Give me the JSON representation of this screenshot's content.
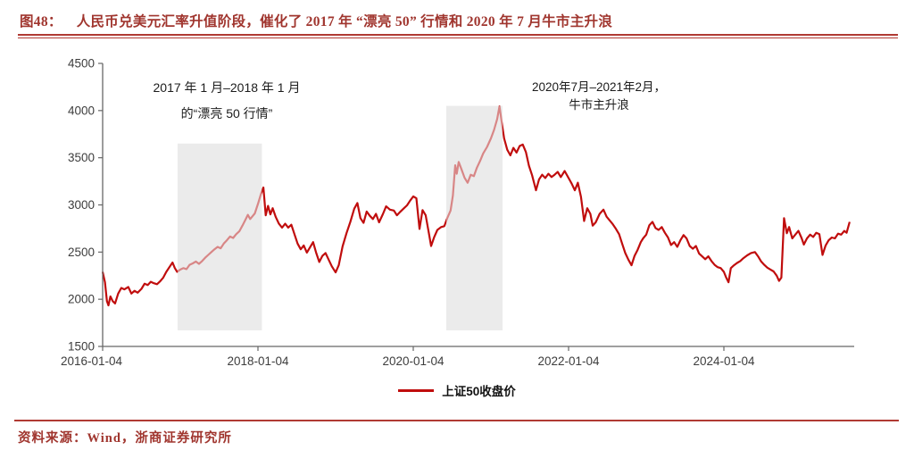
{
  "figure": {
    "label": "图48：",
    "title": "人民币兑美元汇率升值阶段，催化了 2017 年 “漂亮 50” 行情和 2020 年 7 月牛市主升浪",
    "source": "资料来源：Wind，浙商证券研究所"
  },
  "colors": {
    "title_red": "#a0352e",
    "rule_red": "#b03a33",
    "line_red": "#c00d0d",
    "axis_gray": "#666666",
    "tick_label": "#3d3d3d",
    "region_gray": "#ebebeb"
  },
  "annotations": [
    {
      "line1": "2017 年 1 月–2018 年 1 月",
      "line2": "的“漂亮 50 行情”"
    },
    {
      "line1": "2020年7月–2021年2月，",
      "line2": "牛市主升浪"
    }
  ],
  "legend": {
    "label": "上证50收盘价"
  },
  "chart_data": {
    "type": "line",
    "series_name": "上证50收盘价",
    "x_axis_start_date": "2016-01-04",
    "ylim": [
      1500,
      4500
    ],
    "grid": false,
    "legend_position": "bottom-center",
    "y_ticks": [
      4500,
      4000,
      3500,
      3000,
      2500,
      2000,
      1500
    ],
    "x_ticks": [
      {
        "label": "2016-01-04",
        "t": 0
      },
      {
        "label": "2018-01-04",
        "t": 2
      },
      {
        "label": "2020-01-04",
        "t": 4
      },
      {
        "label": "2022-01-04",
        "t": 6
      },
      {
        "label": "2024-01-04",
        "t": 8
      }
    ],
    "regions": [
      {
        "t0": 0.965,
        "t1": 2.05,
        "v_top": 3650,
        "v_bottom": 1670
      },
      {
        "t0": 4.425,
        "t1": 5.15,
        "v_top": 4050,
        "v_bottom": 1670
      }
    ],
    "noise_amplitude": 55,
    "points": [
      [
        0.0,
        2290
      ],
      [
        0.03,
        2180
      ],
      [
        0.055,
        1980
      ],
      [
        0.075,
        1935
      ],
      [
        0.1,
        2030
      ],
      [
        0.13,
        1980
      ],
      [
        0.16,
        1955
      ],
      [
        0.2,
        2060
      ],
      [
        0.24,
        2120
      ],
      [
        0.28,
        2105
      ],
      [
        0.33,
        2130
      ],
      [
        0.37,
        2060
      ],
      [
        0.41,
        2090
      ],
      [
        0.45,
        2070
      ],
      [
        0.5,
        2110
      ],
      [
        0.54,
        2165
      ],
      [
        0.58,
        2150
      ],
      [
        0.62,
        2185
      ],
      [
        0.66,
        2170
      ],
      [
        0.7,
        2160
      ],
      [
        0.74,
        2190
      ],
      [
        0.78,
        2230
      ],
      [
        0.82,
        2290
      ],
      [
        0.86,
        2340
      ],
      [
        0.9,
        2390
      ],
      [
        0.93,
        2330
      ],
      [
        0.96,
        2290
      ],
      [
        1.0,
        2315
      ],
      [
        1.04,
        2330
      ],
      [
        1.08,
        2320
      ],
      [
        1.12,
        2365
      ],
      [
        1.16,
        2380
      ],
      [
        1.2,
        2400
      ],
      [
        1.24,
        2375
      ],
      [
        1.28,
        2405
      ],
      [
        1.32,
        2440
      ],
      [
        1.36,
        2470
      ],
      [
        1.4,
        2500
      ],
      [
        1.44,
        2530
      ],
      [
        1.48,
        2555
      ],
      [
        1.52,
        2540
      ],
      [
        1.56,
        2590
      ],
      [
        1.6,
        2625
      ],
      [
        1.64,
        2665
      ],
      [
        1.68,
        2650
      ],
      [
        1.72,
        2690
      ],
      [
        1.76,
        2720
      ],
      [
        1.8,
        2780
      ],
      [
        1.84,
        2845
      ],
      [
        1.87,
        2895
      ],
      [
        1.9,
        2850
      ],
      [
        1.93,
        2880
      ],
      [
        1.96,
        2910
      ],
      [
        2.0,
        3010
      ],
      [
        2.04,
        3120
      ],
      [
        2.07,
        3185
      ],
      [
        2.1,
        2890
      ],
      [
        2.13,
        2990
      ],
      [
        2.16,
        2900
      ],
      [
        2.19,
        2965
      ],
      [
        2.23,
        2870
      ],
      [
        2.27,
        2800
      ],
      [
        2.31,
        2760
      ],
      [
        2.35,
        2800
      ],
      [
        2.39,
        2760
      ],
      [
        2.43,
        2790
      ],
      [
        2.47,
        2690
      ],
      [
        2.51,
        2590
      ],
      [
        2.55,
        2530
      ],
      [
        2.59,
        2570
      ],
      [
        2.63,
        2495
      ],
      [
        2.67,
        2550
      ],
      [
        2.71,
        2605
      ],
      [
        2.75,
        2490
      ],
      [
        2.79,
        2395
      ],
      [
        2.83,
        2460
      ],
      [
        2.87,
        2490
      ],
      [
        2.91,
        2420
      ],
      [
        2.95,
        2350
      ],
      [
        3.0,
        2285
      ],
      [
        3.04,
        2360
      ],
      [
        3.09,
        2560
      ],
      [
        3.14,
        2700
      ],
      [
        3.19,
        2820
      ],
      [
        3.24,
        2960
      ],
      [
        3.28,
        3020
      ],
      [
        3.32,
        2860
      ],
      [
        3.36,
        2810
      ],
      [
        3.4,
        2930
      ],
      [
        3.44,
        2885
      ],
      [
        3.48,
        2850
      ],
      [
        3.52,
        2905
      ],
      [
        3.56,
        2815
      ],
      [
        3.61,
        2905
      ],
      [
        3.65,
        2985
      ],
      [
        3.7,
        2950
      ],
      [
        3.75,
        2940
      ],
      [
        3.79,
        2890
      ],
      [
        3.83,
        2925
      ],
      [
        3.88,
        2965
      ],
      [
        3.92,
        2995
      ],
      [
        3.96,
        3045
      ],
      [
        4.0,
        3090
      ],
      [
        4.04,
        3070
      ],
      [
        4.08,
        2745
      ],
      [
        4.12,
        2945
      ],
      [
        4.16,
        2890
      ],
      [
        4.2,
        2705
      ],
      [
        4.23,
        2565
      ],
      [
        4.27,
        2660
      ],
      [
        4.31,
        2735
      ],
      [
        4.36,
        2765
      ],
      [
        4.4,
        2775
      ],
      [
        4.44,
        2865
      ],
      [
        4.48,
        2940
      ],
      [
        4.51,
        3100
      ],
      [
        4.54,
        3420
      ],
      [
        4.56,
        3330
      ],
      [
        4.585,
        3455
      ],
      [
        4.62,
        3380
      ],
      [
        4.66,
        3290
      ],
      [
        4.7,
        3235
      ],
      [
        4.74,
        3320
      ],
      [
        4.78,
        3305
      ],
      [
        4.82,
        3395
      ],
      [
        4.86,
        3465
      ],
      [
        4.9,
        3545
      ],
      [
        4.95,
        3615
      ],
      [
        5.0,
        3705
      ],
      [
        5.04,
        3795
      ],
      [
        5.08,
        3910
      ],
      [
        5.11,
        4045
      ],
      [
        5.14,
        3870
      ],
      [
        5.17,
        3705
      ],
      [
        5.21,
        3585
      ],
      [
        5.25,
        3525
      ],
      [
        5.29,
        3605
      ],
      [
        5.33,
        3555
      ],
      [
        5.37,
        3625
      ],
      [
        5.41,
        3640
      ],
      [
        5.45,
        3560
      ],
      [
        5.49,
        3415
      ],
      [
        5.53,
        3315
      ],
      [
        5.58,
        3155
      ],
      [
        5.62,
        3270
      ],
      [
        5.66,
        3320
      ],
      [
        5.7,
        3285
      ],
      [
        5.74,
        3330
      ],
      [
        5.78,
        3295
      ],
      [
        5.82,
        3320
      ],
      [
        5.86,
        3350
      ],
      [
        5.9,
        3295
      ],
      [
        5.95,
        3360
      ],
      [
        6.0,
        3285
      ],
      [
        6.04,
        3225
      ],
      [
        6.08,
        3155
      ],
      [
        6.12,
        3235
      ],
      [
        6.16,
        3085
      ],
      [
        6.2,
        2830
      ],
      [
        6.24,
        2965
      ],
      [
        6.28,
        2905
      ],
      [
        6.31,
        2780
      ],
      [
        6.35,
        2815
      ],
      [
        6.4,
        2905
      ],
      [
        6.45,
        2950
      ],
      [
        6.49,
        2875
      ],
      [
        6.53,
        2835
      ],
      [
        6.57,
        2795
      ],
      [
        6.61,
        2745
      ],
      [
        6.65,
        2690
      ],
      [
        6.69,
        2590
      ],
      [
        6.73,
        2490
      ],
      [
        6.77,
        2420
      ],
      [
        6.81,
        2360
      ],
      [
        6.85,
        2460
      ],
      [
        6.89,
        2525
      ],
      [
        6.93,
        2605
      ],
      [
        6.96,
        2645
      ],
      [
        7.0,
        2685
      ],
      [
        7.04,
        2785
      ],
      [
        7.08,
        2820
      ],
      [
        7.12,
        2755
      ],
      [
        7.16,
        2735
      ],
      [
        7.2,
        2765
      ],
      [
        7.24,
        2705
      ],
      [
        7.28,
        2655
      ],
      [
        7.32,
        2575
      ],
      [
        7.36,
        2605
      ],
      [
        7.4,
        2555
      ],
      [
        7.44,
        2625
      ],
      [
        7.48,
        2680
      ],
      [
        7.52,
        2645
      ],
      [
        7.56,
        2565
      ],
      [
        7.6,
        2535
      ],
      [
        7.64,
        2565
      ],
      [
        7.68,
        2485
      ],
      [
        7.72,
        2455
      ],
      [
        7.76,
        2425
      ],
      [
        7.8,
        2455
      ],
      [
        7.84,
        2405
      ],
      [
        7.88,
        2365
      ],
      [
        7.92,
        2340
      ],
      [
        7.96,
        2330
      ],
      [
        8.0,
        2290
      ],
      [
        8.03,
        2230
      ],
      [
        8.06,
        2180
      ],
      [
        8.09,
        2330
      ],
      [
        8.13,
        2360
      ],
      [
        8.17,
        2385
      ],
      [
        8.21,
        2405
      ],
      [
        8.25,
        2435
      ],
      [
        8.3,
        2465
      ],
      [
        8.35,
        2490
      ],
      [
        8.4,
        2500
      ],
      [
        8.44,
        2455
      ],
      [
        8.48,
        2400
      ],
      [
        8.52,
        2365
      ],
      [
        8.56,
        2335
      ],
      [
        8.6,
        2315
      ],
      [
        8.64,
        2295
      ],
      [
        8.68,
        2250
      ],
      [
        8.71,
        2195
      ],
      [
        8.74,
        2230
      ],
      [
        8.775,
        2860
      ],
      [
        8.81,
        2700
      ],
      [
        8.84,
        2765
      ],
      [
        8.88,
        2645
      ],
      [
        8.92,
        2685
      ],
      [
        8.96,
        2725
      ],
      [
        9.0,
        2650
      ],
      [
        9.03,
        2580
      ],
      [
        9.07,
        2645
      ],
      [
        9.11,
        2685
      ],
      [
        9.15,
        2660
      ],
      [
        9.19,
        2705
      ],
      [
        9.23,
        2690
      ],
      [
        9.27,
        2470
      ],
      [
        9.31,
        2570
      ],
      [
        9.35,
        2625
      ],
      [
        9.39,
        2655
      ],
      [
        9.43,
        2645
      ],
      [
        9.47,
        2695
      ],
      [
        9.51,
        2685
      ],
      [
        9.55,
        2725
      ],
      [
        9.58,
        2705
      ],
      [
        9.62,
        2820
      ]
    ]
  }
}
